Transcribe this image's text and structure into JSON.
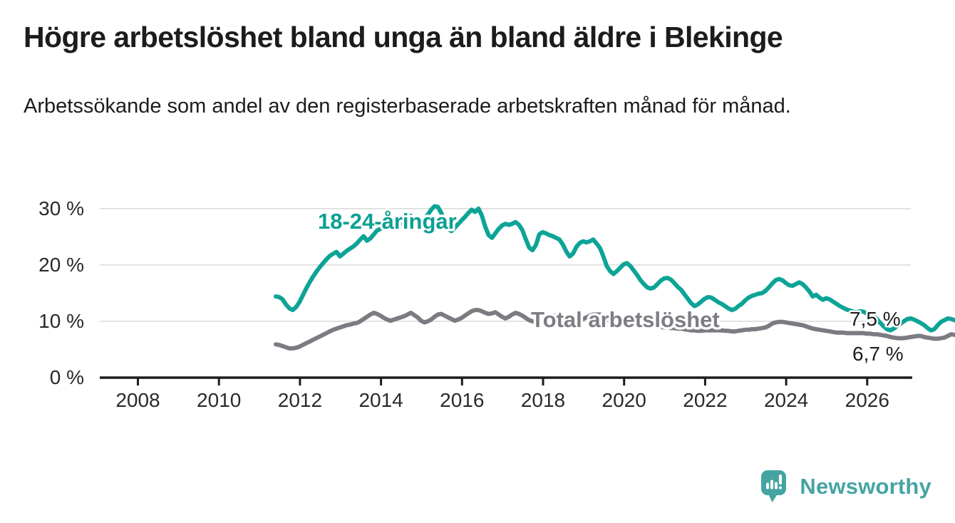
{
  "header": {
    "title": "Högre arbetslöshet bland unga än bland äldre i Blekinge",
    "subtitle": "Arbetssökande som andel av den registerbaserade arbetskraften månad för månad."
  },
  "chart_data": {
    "type": "line",
    "title": "Högre arbetslöshet bland unga än bland äldre i Blekinge",
    "subtitle": "Arbetssökande som andel av den registerbaserade arbetskraften månad för månad.",
    "unit": "%",
    "x_start_year": 2008,
    "points_per_year": 12,
    "x_end_label_values": {
      "youth": "7,5 %",
      "total": "6,7 %"
    },
    "ylim": [
      0,
      32
    ],
    "grid": true,
    "yticks": [
      0,
      10,
      20,
      30
    ],
    "ytick_labels_top_to_bottom": [
      "30 %",
      "20 %",
      "10 %",
      "0 %"
    ],
    "xticks": [
      2008,
      2010,
      2012,
      2014,
      2016,
      2018,
      2020,
      2022,
      2024,
      2026
    ],
    "xtick_labels": [
      "2008",
      "2010",
      "2012",
      "2014",
      "2016",
      "2018",
      "2020",
      "2022",
      "2024",
      "2026"
    ],
    "series": [
      {
        "id": "total",
        "name": "Total arbetslöshet",
        "color": "#7b7b81",
        "label_color": "#7d7d83",
        "end_label": "6,7 %",
        "end_value": 6.7,
        "values": [
          5.9,
          5.8,
          5.6,
          5.4,
          5.2,
          5.2,
          5.3,
          5.5,
          5.8,
          6.1,
          6.4,
          6.7,
          7.0,
          7.3,
          7.6,
          7.9,
          8.2,
          8.5,
          8.7,
          8.9,
          9.1,
          9.3,
          9.4,
          9.6,
          9.7,
          10.0,
          10.4,
          10.8,
          11.2,
          11.5,
          11.3,
          11.0,
          10.6,
          10.3,
          10.1,
          10.3,
          10.5,
          10.7,
          10.9,
          11.2,
          11.5,
          11.1,
          10.7,
          10.1,
          9.8,
          10.0,
          10.3,
          10.8,
          11.2,
          11.3,
          11.0,
          10.7,
          10.4,
          10.1,
          10.3,
          10.6,
          11.0,
          11.4,
          11.8,
          12.0,
          12.0,
          11.8,
          11.5,
          11.3,
          11.4,
          11.6,
          11.2,
          10.8,
          10.5,
          10.8,
          11.2,
          11.5,
          11.3,
          11.0,
          10.6,
          10.2,
          10.0,
          9.8,
          10.0,
          10.3,
          10.6,
          10.8,
          11.0,
          11.0,
          10.8,
          10.6,
          10.4,
          10.2,
          10.0,
          9.9,
          10.1,
          10.4,
          10.7,
          11.0,
          11.2,
          11.2,
          11.2,
          10.9,
          10.5,
          9.9,
          9.5,
          9.7,
          9.9,
          10.1,
          10.3,
          10.5,
          10.3,
          10.1,
          9.9,
          9.7,
          9.5,
          9.4,
          9.3,
          9.1,
          9.0,
          8.9,
          8.9,
          8.8,
          8.8,
          8.7,
          8.7,
          8.6,
          8.5,
          8.4,
          8.4,
          8.3,
          8.3,
          8.4,
          8.4,
          8.4,
          8.4,
          8.4,
          8.4,
          8.3,
          8.3,
          8.2,
          8.2,
          8.3,
          8.4,
          8.5,
          8.5,
          8.6,
          8.6,
          8.7,
          8.8,
          8.9,
          9.2,
          9.6,
          9.8,
          9.9,
          9.9,
          9.8,
          9.7,
          9.6,
          9.5,
          9.4,
          9.3,
          9.1,
          8.9,
          8.7,
          8.6,
          8.5,
          8.4,
          8.3,
          8.2,
          8.1,
          8.0,
          8.0,
          8.0,
          7.9,
          7.9,
          7.9,
          7.9,
          7.9,
          7.9,
          7.8,
          7.8,
          7.7,
          7.7,
          7.6,
          7.5,
          7.4,
          7.2,
          7.1,
          7.0,
          7.0,
          7.0,
          7.1,
          7.2,
          7.3,
          7.4,
          7.4,
          7.2,
          7.1,
          7.0,
          6.9,
          6.9,
          7.0,
          7.1,
          7.4,
          7.7,
          7.6,
          7.5,
          7.4,
          7.2,
          7.1,
          7.0,
          6.9,
          6.8,
          6.8,
          6.8,
          6.7,
          6.6,
          6.5,
          6.6,
          6.7,
          6.7,
          6.7,
          6.7
        ]
      },
      {
        "id": "youth",
        "name": "18-24-åringar",
        "color": "#0da497",
        "label_color": "#0ba094",
        "end_label": "7,5 %",
        "end_value": 7.5,
        "values": [
          14.4,
          14.3,
          13.9,
          13.0,
          12.3,
          12.0,
          12.5,
          13.4,
          14.6,
          15.8,
          16.9,
          17.9,
          18.8,
          19.6,
          20.3,
          21.0,
          21.6,
          22.0,
          22.3,
          21.5,
          22.0,
          22.5,
          22.9,
          23.3,
          23.8,
          24.5,
          25.1,
          24.3,
          24.7,
          25.4,
          26.1,
          26.4,
          26.8,
          27.2,
          27.4,
          27.2,
          26.9,
          27.4,
          28.0,
          28.5,
          28.7,
          27.5,
          26.8,
          27.4,
          28.2,
          28.9,
          29.8,
          30.4,
          30.3,
          29.2,
          27.6,
          26.4,
          26.0,
          26.6,
          27.3,
          27.9,
          28.5,
          29.2,
          29.8,
          29.4,
          30.0,
          28.8,
          26.8,
          25.3,
          24.8,
          25.6,
          26.4,
          27.0,
          27.3,
          27.1,
          27.3,
          27.6,
          27.1,
          26.2,
          24.6,
          23.1,
          22.6,
          23.5,
          25.4,
          25.8,
          25.6,
          25.3,
          25.1,
          24.8,
          24.5,
          23.6,
          22.4,
          21.5,
          22.0,
          23.2,
          23.9,
          24.2,
          24.0,
          24.2,
          24.5,
          23.8,
          23.0,
          21.5,
          19.8,
          18.9,
          18.4,
          18.9,
          19.5,
          20.1,
          20.3,
          19.8,
          19.0,
          18.2,
          17.3,
          16.6,
          16.0,
          15.8,
          16.0,
          16.6,
          17.2,
          17.6,
          17.7,
          17.4,
          16.8,
          16.1,
          15.6,
          14.8,
          14.0,
          13.2,
          12.7,
          13.0,
          13.5,
          14.0,
          14.3,
          14.2,
          13.8,
          13.4,
          13.1,
          12.7,
          12.3,
          12.0,
          12.2,
          12.7,
          13.1,
          13.7,
          14.2,
          14.5,
          14.7,
          14.9,
          15.0,
          15.4,
          16.0,
          16.7,
          17.3,
          17.5,
          17.3,
          16.8,
          16.4,
          16.3,
          16.6,
          16.9,
          16.6,
          16.0,
          15.3,
          14.4,
          14.7,
          14.2,
          13.8,
          14.1,
          13.9,
          13.5,
          13.1,
          12.7,
          12.4,
          12.1,
          11.9,
          11.7,
          11.6,
          11.8,
          11.7,
          11.4,
          11.1,
          10.9,
          10.4,
          9.7,
          9.1,
          8.6,
          8.4,
          8.7,
          9.2,
          9.6,
          10.0,
          10.4,
          10.5,
          10.3,
          10.0,
          9.7,
          9.3,
          8.8,
          8.4,
          8.6,
          9.3,
          9.9,
          10.2,
          10.5,
          10.4,
          10.2,
          9.9,
          9.5,
          9.1,
          8.5,
          7.8,
          7.4,
          7.9,
          8.7,
          9.4,
          9.6,
          9.1,
          8.5,
          8.0,
          7.7,
          7.6,
          7.5
        ]
      }
    ]
  },
  "footer": {
    "brand": "Newsworthy"
  }
}
